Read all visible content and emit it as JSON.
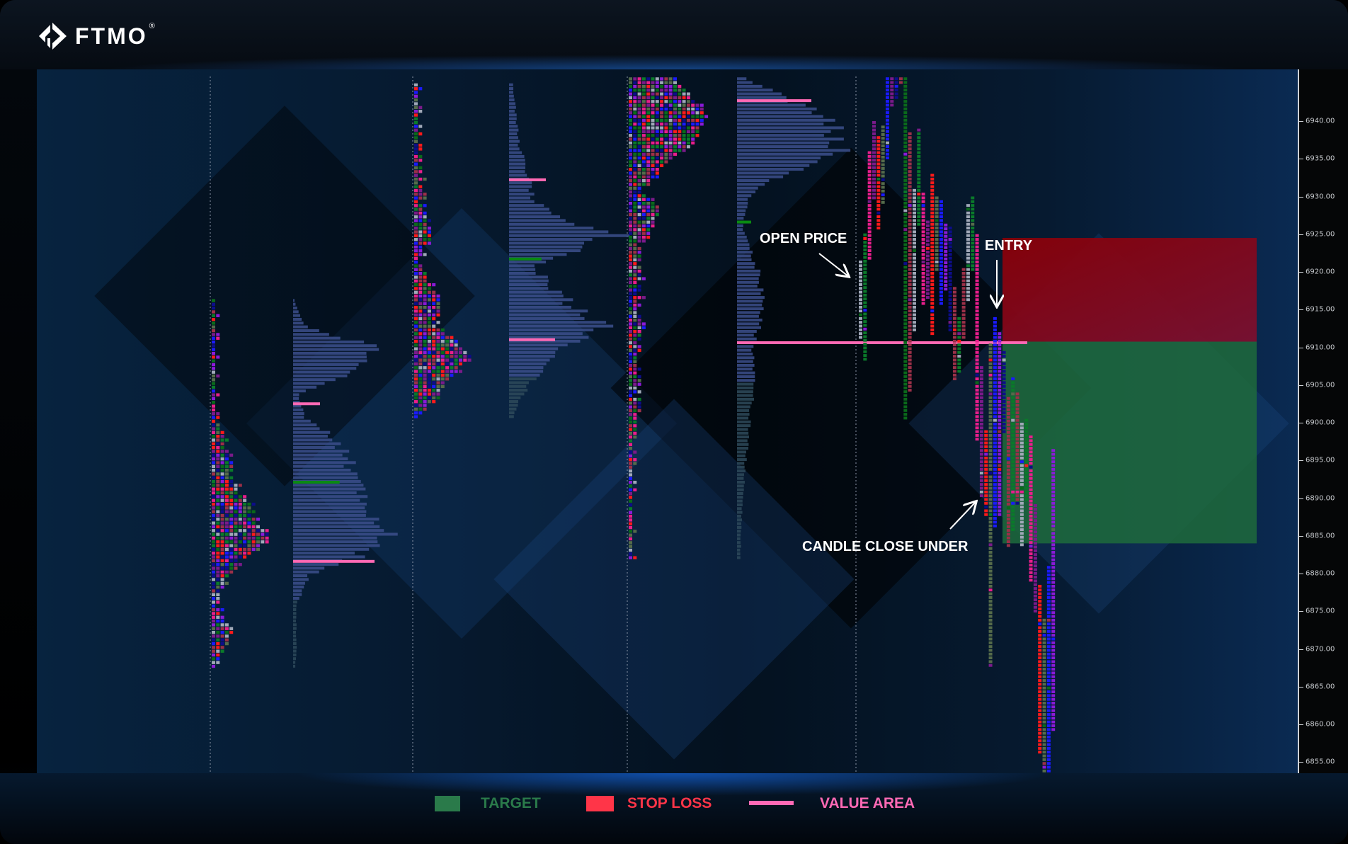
{
  "brand": {
    "name": "FTMO",
    "registered": "®"
  },
  "legend": [
    {
      "label": "TARGET",
      "color": "#2a7a4a",
      "kind": "box"
    },
    {
      "label": "STOP LOSS",
      "color": "#ff3548",
      "kind": "box"
    },
    {
      "label": "VALUE AREA",
      "color": "#ff69b4",
      "kind": "line"
    }
  ],
  "annotations": {
    "open_price": "OPEN PRICE",
    "entry": "ENTRY",
    "candle_close": "CANDLE CLOSE UNDER"
  },
  "chart_data": {
    "type": "market-profile",
    "y_axis": {
      "min": 6853,
      "max": 6948,
      "ticks": [
        "6940.00",
        "6935.00",
        "6930.00",
        "6925.00",
        "6920.00",
        "6915.00",
        "6910.00",
        "6905.00",
        "6900.00",
        "6895.00",
        "6890.00",
        "6885.00",
        "6880.00",
        "6875.00",
        "6870.00",
        "6865.00",
        "6860.00",
        "6855.00"
      ],
      "position": "right"
    },
    "colors": {
      "value_area": "#ff69b4",
      "poc": "#0a8a12",
      "profile": "#3c4f8c",
      "target": "#1e6b3c",
      "stop_loss": "#8a0a14"
    },
    "zones": {
      "stop_loss": {
        "from": 6910.75,
        "to": 6924.5
      },
      "target": {
        "from": 6884,
        "to": 6910.75
      },
      "entry": 6910.75
    },
    "sessions": [
      {
        "high": 6916.4,
        "low": 6867.7,
        "vah": 6902.7,
        "val": 6881.8,
        "poc": 6892.3,
        "tpo": [
          [
            6916,
            1
          ],
          [
            6902,
            1
          ],
          [
            6898,
            3
          ],
          [
            6893,
            5
          ],
          [
            6888,
            10
          ],
          [
            6885,
            13
          ],
          [
            6882,
            7
          ],
          [
            6879,
            3
          ],
          [
            6876,
            2
          ],
          [
            6873,
            5
          ],
          [
            6869,
            2
          ],
          [
            6867.7,
            1
          ]
        ],
        "volume": [
          [
            6916,
            2
          ],
          [
            6913,
            10
          ],
          [
            6910,
            80
          ],
          [
            6907,
            60
          ],
          [
            6904,
            5
          ],
          [
            6901,
            10
          ],
          [
            6898,
            40
          ],
          [
            6894,
            55
          ],
          [
            6889,
            65
          ],
          [
            6886,
            100
          ],
          [
            6883,
            70
          ],
          [
            6880,
            15
          ],
          [
            6876,
            3
          ],
          [
            6870,
            3
          ],
          [
            6867.7,
            2
          ]
        ]
      },
      {
        "high": 6945,
        "low": 6901,
        "vah": 6932.4,
        "val": 6911.2,
        "poc": 6921.9,
        "tpo": [
          [
            6945,
            1
          ],
          [
            6930,
            2
          ],
          [
            6926,
            4
          ],
          [
            6922,
            2
          ],
          [
            6918,
            5
          ],
          [
            6913,
            6
          ],
          [
            6909,
            13
          ],
          [
            6906,
            8
          ],
          [
            6903,
            4
          ],
          [
            6901,
            1
          ]
        ],
        "volume": [
          [
            6945,
            3
          ],
          [
            6937,
            8
          ],
          [
            6933,
            15
          ],
          [
            6930,
            20
          ],
          [
            6927,
            40
          ],
          [
            6925,
            85
          ],
          [
            6921,
            20
          ],
          [
            6917,
            40
          ],
          [
            6913,
            80
          ],
          [
            6910,
            45
          ],
          [
            6906,
            20
          ],
          [
            6903,
            8
          ],
          [
            6901,
            4
          ]
        ]
      },
      {
        "high": 6945.8,
        "low": 6882,
        "vah": 6942.9,
        "val": 6910.8,
        "poc": 6926.8,
        "tpo": [
          [
            6945.8,
            10
          ],
          [
            6941,
            18
          ],
          [
            6937,
            14
          ],
          [
            6934,
            8
          ],
          [
            6931,
            3
          ],
          [
            6929,
            7
          ],
          [
            6926,
            6
          ],
          [
            6924,
            3
          ],
          [
            6910,
            3
          ],
          [
            6900,
            2
          ],
          [
            6895,
            1
          ],
          [
            6882,
            1
          ]
        ],
        "volume": [
          [
            6945.8,
            10
          ],
          [
            6943,
            50
          ],
          [
            6940,
            90
          ],
          [
            6936,
            100
          ],
          [
            6933,
            40
          ],
          [
            6930,
            10
          ],
          [
            6926,
            5
          ],
          [
            6920,
            20
          ],
          [
            6915,
            25
          ],
          [
            6910,
            15
          ],
          [
            6905,
            15
          ],
          [
            6900,
            12
          ],
          [
            6895,
            8
          ],
          [
            6890,
            5
          ],
          [
            6882,
            3
          ]
        ]
      }
    ],
    "current_session_columns": [
      [
        6921.5,
        6911.2,
        "#a0a8b8"
      ],
      [
        6925.1,
        6908.2,
        "#0a7a2a"
      ],
      [
        6936,
        6922,
        "#e91e8c"
      ],
      [
        6940,
        6930,
        "#7a1a8a"
      ],
      [
        6938,
        6926,
        "#ff1a1a"
      ],
      [
        6939.4,
        6929.2,
        "#556b4a"
      ],
      [
        6945.8,
        6935.1,
        "#1a1aff"
      ],
      [
        6945.8,
        6942,
        "#7a1a8a"
      ],
      [
        6945.8,
        6943,
        "#0d0d8a"
      ],
      [
        6945.8,
        6945,
        "#9b3048"
      ],
      [
        6945.8,
        6900.7,
        "#0a6a1a"
      ],
      [
        6938.5,
        6904.3,
        "#9b3048"
      ],
      [
        6931,
        6912.3,
        "#a0a8b8"
      ],
      [
        6939,
        6926.5,
        "#0a7a2a"
      ],
      [
        6930.5,
        6915.9,
        "#e91e8c"
      ],
      [
        6926.8,
        6916.4,
        "#7a1a8a"
      ],
      [
        6933,
        6911.6,
        "#ff1a1a"
      ],
      [
        6930,
        6920.5,
        "#556b4a"
      ],
      [
        6929.5,
        6915.7,
        "#1a1aff"
      ],
      [
        6926.4,
        6917.6,
        "#8a1ad8"
      ],
      [
        6926,
        6912.2,
        "#0d0d8a"
      ],
      [
        6918,
        6905.7,
        "#9b3048"
      ],
      [
        6914,
        6906.7,
        "#0a7a2a"
      ],
      [
        6920.5,
        6911.2,
        "#9b3048"
      ],
      [
        6929,
        6916.2,
        "#a0a8b8"
      ],
      [
        6930,
        6920.5,
        "#0a7a2a"
      ],
      [
        6925,
        6897.6,
        "#e91e8c"
      ],
      [
        6907.5,
        6890.2,
        "#7a1a8a"
      ],
      [
        6899,
        6887.7,
        "#ff1a1a"
      ],
      [
        6910.5,
        6867.6,
        "#556b4a"
      ],
      [
        6914,
        6886.2,
        "#1a1aff"
      ],
      [
        6912,
        6887.7,
        "#8a1ad8"
      ],
      [
        6909.5,
        6898.7,
        "#0d0d8a"
      ],
      [
        6903.4,
        6883.7,
        "#9b3048"
      ],
      [
        6906,
        6885.6,
        "#0a7a2a"
      ],
      [
        6904,
        6889.2,
        "#9b3048"
      ],
      [
        6900,
        6883.7,
        "#a0a8b8"
      ],
      [
        6900.5,
        6889.7,
        "#0a7a2a"
      ],
      [
        6898.3,
        6879,
        "#e91e8c"
      ],
      [
        6889.2,
        6875,
        "#7a1a8a"
      ],
      [
        6878.5,
        6856.5,
        "#ff1a1a"
      ],
      [
        6874,
        6854,
        "#556b4a"
      ],
      [
        6881,
        6854,
        "#1a1aff"
      ],
      [
        6896.5,
        6859.5,
        "#8a1ad8"
      ]
    ]
  }
}
